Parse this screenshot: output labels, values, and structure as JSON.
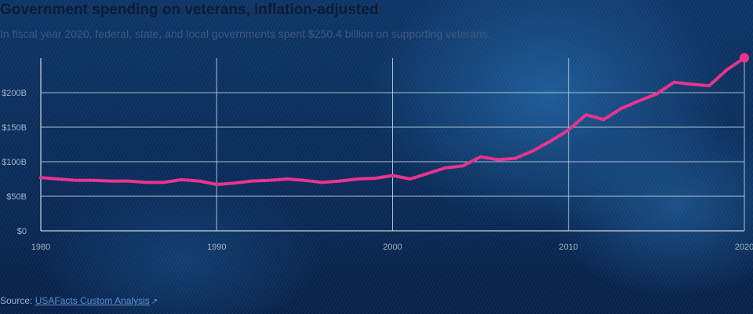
{
  "colors": {
    "series": "#e8348f",
    "grid": "#c9d6e6",
    "title": "#0b1c33"
  },
  "header": {
    "title": "Government spending on veterans, inflation-adjusted",
    "subtitle": "In fiscal year 2020, federal, state, and local governments spent $250.4 billion on supporting veterans."
  },
  "source": {
    "prefix": "Source:",
    "link_label": "USAFacts Custom Analysis",
    "icon": "external-link-icon"
  },
  "chart_data": {
    "type": "line",
    "title": "Government spending on veterans, inflation-adjusted",
    "xlabel": "",
    "ylabel": "",
    "xlim": [
      1980,
      2020
    ],
    "ylim": [
      0,
      250
    ],
    "y_ticks": [
      0,
      50,
      100,
      150,
      200
    ],
    "y_tick_labels": [
      "$0",
      "$50B",
      "$100B",
      "$150B",
      "$200B"
    ],
    "x_ticks": [
      1980,
      1990,
      2000,
      2010,
      2020
    ],
    "x_tick_labels": [
      "1980",
      "1990",
      "2000",
      "2010",
      "2020"
    ],
    "grid": true,
    "series": [
      {
        "x": [
          1980,
          1981,
          1982,
          1983,
          1984,
          1985,
          1986,
          1987,
          1988,
          1989,
          1990,
          1991,
          1992,
          1993,
          1994,
          1995,
          1996,
          1997,
          1998,
          1999,
          2000,
          2001,
          2002,
          2003,
          2004,
          2005,
          2006,
          2007,
          2008,
          2009,
          2010,
          2011,
          2012,
          2013,
          2014,
          2015,
          2016,
          2017,
          2018,
          2019,
          2020
        ],
        "values": [
          77,
          75,
          73,
          73,
          72,
          72,
          70,
          70,
          74,
          72,
          67,
          69,
          72,
          73,
          75,
          73,
          70,
          72,
          75,
          76,
          80,
          75,
          83,
          91,
          94,
          107,
          103,
          105,
          116,
          130,
          146,
          168,
          161,
          177,
          188,
          198,
          215,
          212,
          210,
          233,
          250.4
        ]
      }
    ]
  }
}
